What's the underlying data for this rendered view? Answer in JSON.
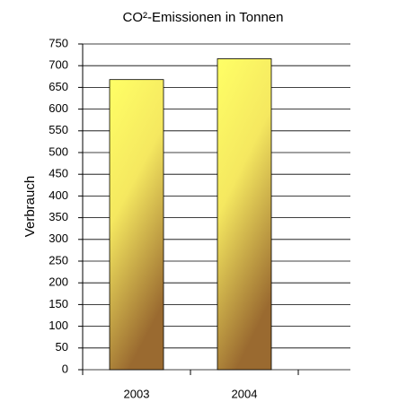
{
  "chart_data": {
    "type": "bar",
    "title": "CO²-Emissionen in Tonnen",
    "y_label": "Verbrauch",
    "categories": [
      "2003",
      "2004",
      null
    ],
    "values": [
      668,
      716,
      null
    ],
    "color": "#ffff66",
    "ylim": [
      0,
      750
    ],
    "yticks": [
      0,
      50,
      100,
      150,
      200,
      250,
      300,
      350,
      400,
      450,
      500,
      550,
      600,
      650,
      700,
      750
    ],
    "grid": true
  }
}
